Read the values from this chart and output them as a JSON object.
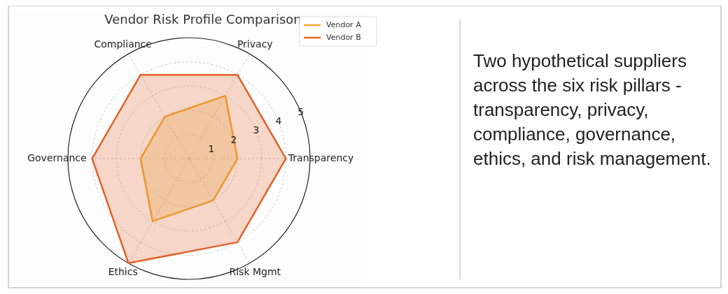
{
  "chart_data": {
    "type": "radar",
    "title": "Vendor Risk Profile Comparison",
    "categories": [
      "Privacy",
      "Transparency",
      "Risk Mgmt",
      "Ethics",
      "Governance",
      "Compliance"
    ],
    "series": [
      {
        "name": "Vendor A",
        "color": "#f0a830",
        "values": [
          3,
          2,
          2,
          3,
          2,
          2
        ]
      },
      {
        "name": "Vendor B",
        "color": "#e0622a",
        "values": [
          4,
          4,
          4,
          5,
          4,
          4
        ]
      }
    ],
    "ylim": [
      0,
      5
    ],
    "yticks": [
      1,
      2,
      3,
      4,
      5
    ],
    "grid": true,
    "legend": "top right",
    "annotations": [
      "Two hypothetical suppliers across the six risk pillars - transparency, privacy, compliance, governance, ethics, and risk management."
    ]
  }
}
